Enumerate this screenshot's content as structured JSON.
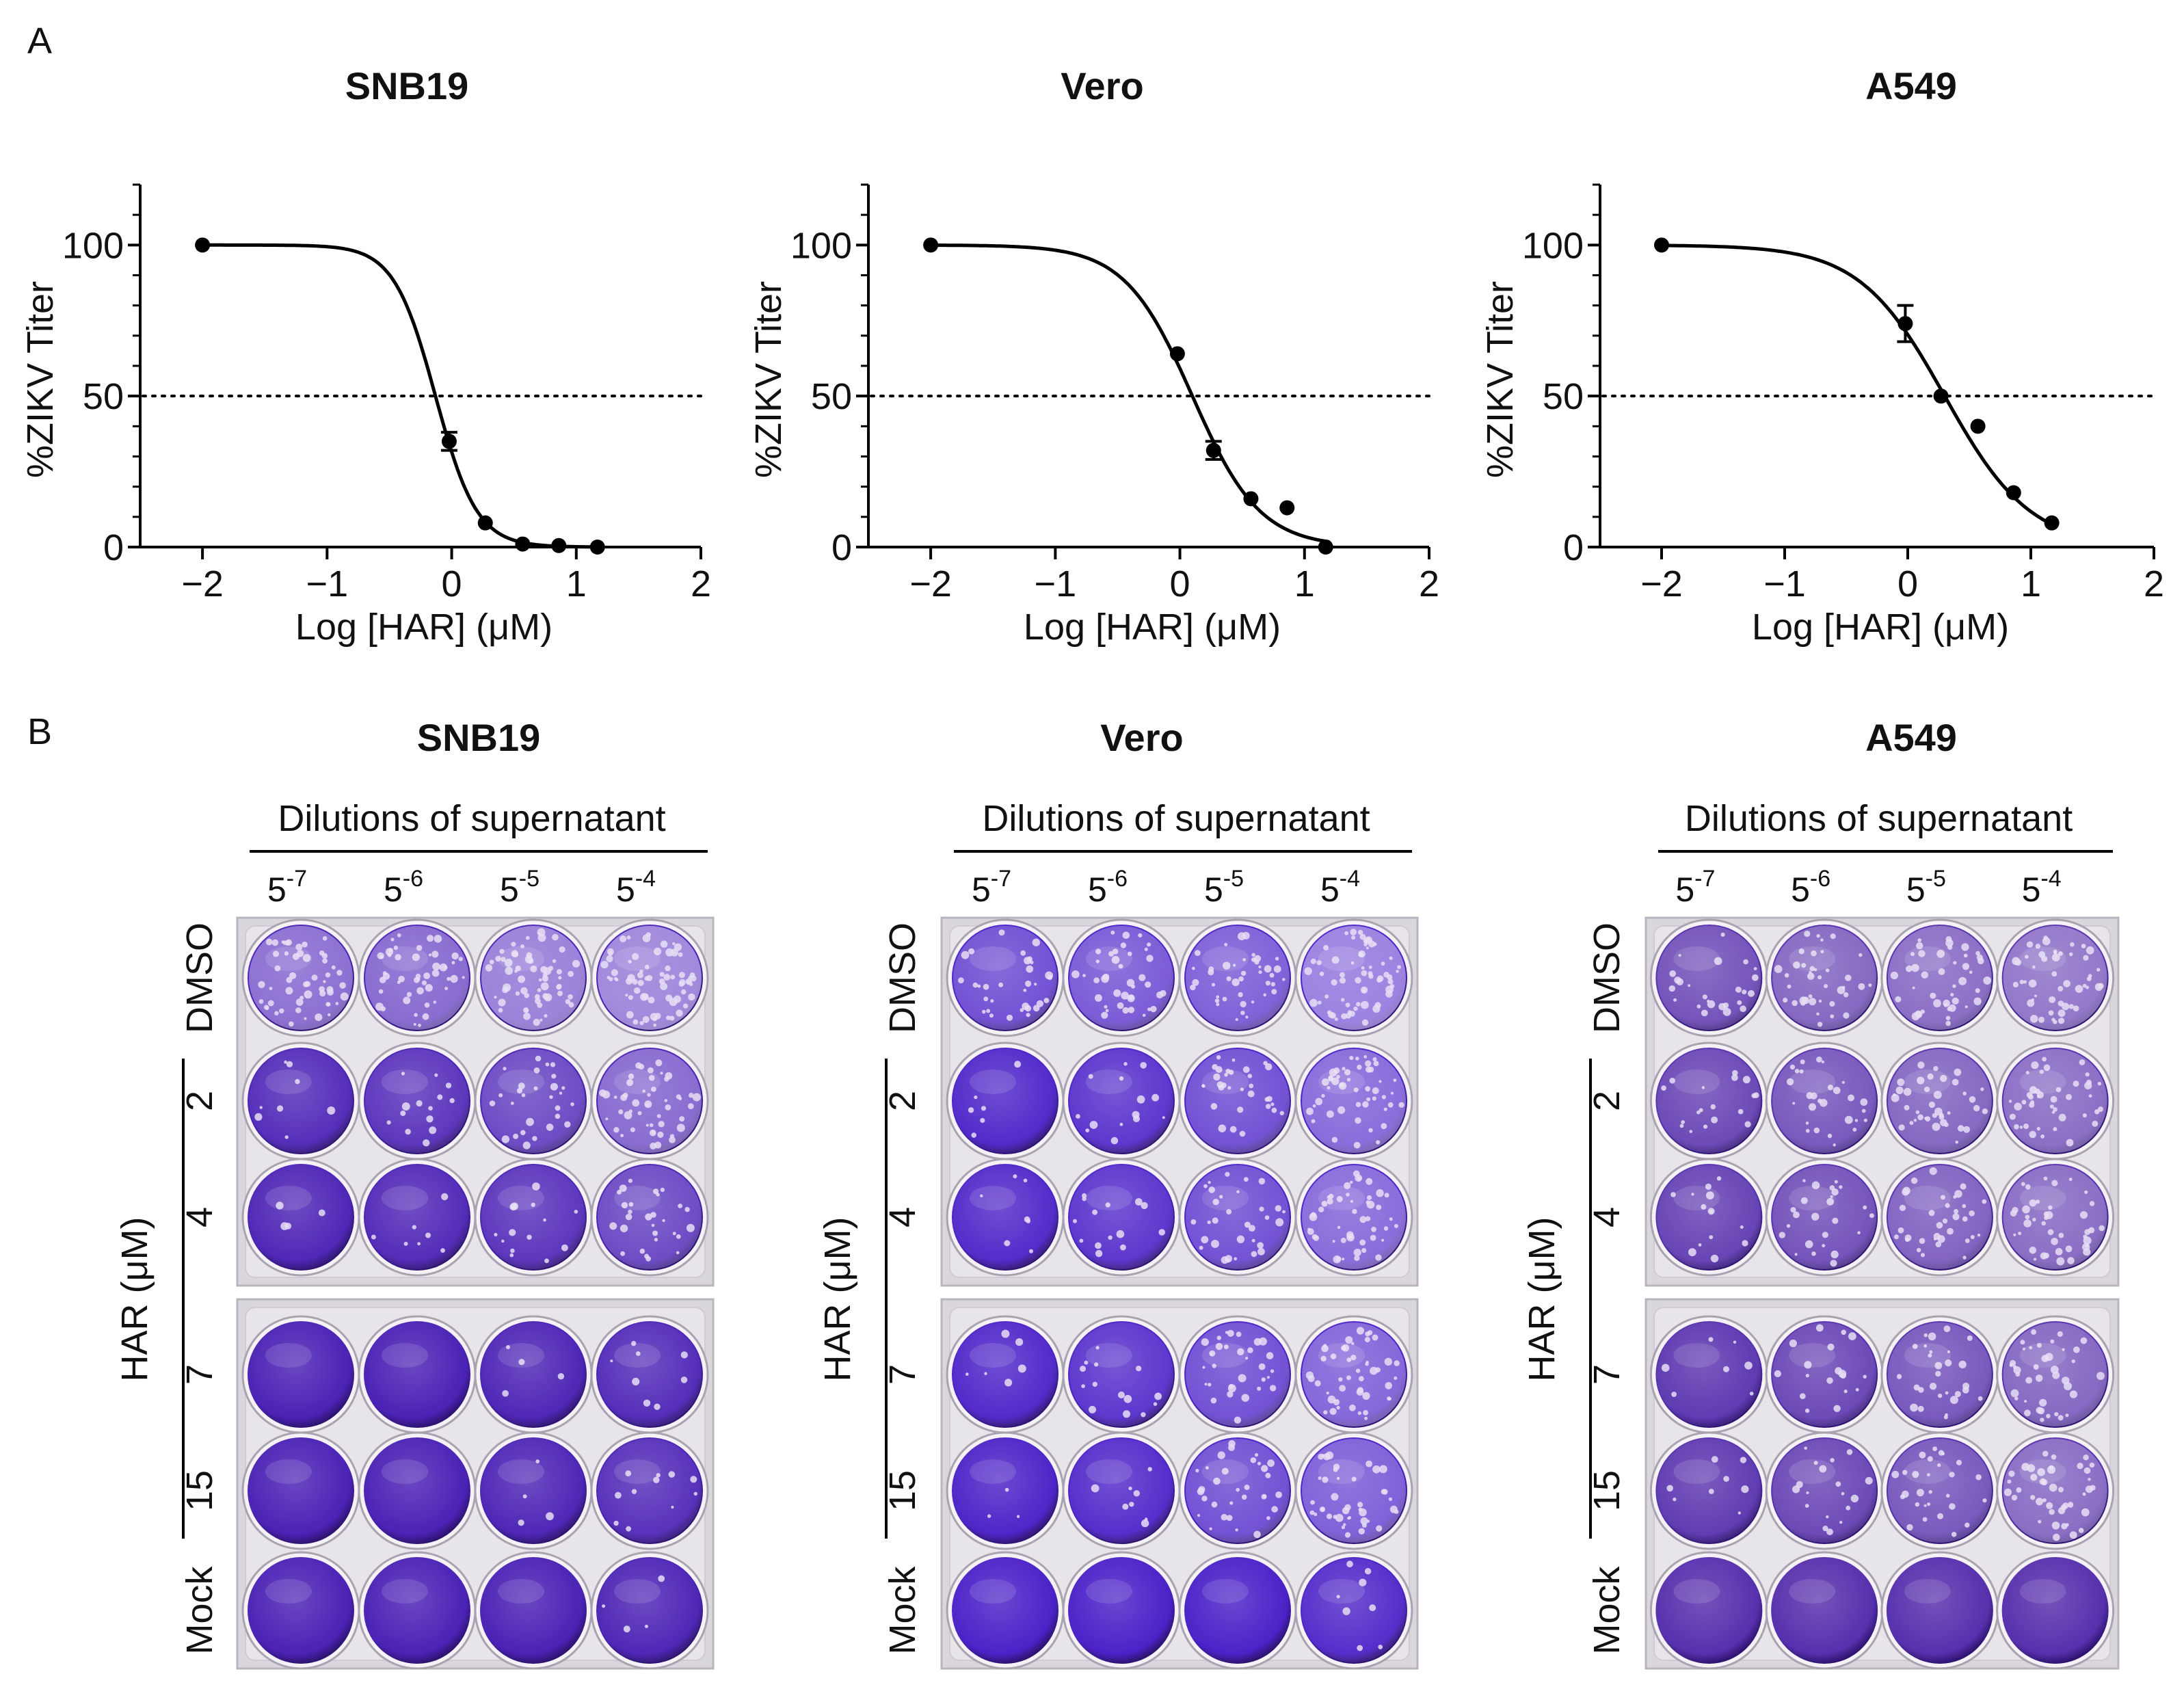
{
  "panel_labels": {
    "a": "A",
    "b": "B"
  },
  "chart_data": [
    {
      "type": "scatter",
      "title": "SNB19",
      "xlabel": "Log [HAR] (μM)",
      "ylabel": "%ZIKV Titer",
      "xlim": [
        -2.5,
        2
      ],
      "ylim": [
        0,
        120
      ],
      "xticks": [
        "−2",
        "−1",
        "0",
        "1",
        "2"
      ],
      "yticks": [
        "0",
        "50",
        "100"
      ],
      "reference_line_y": 50,
      "fit": {
        "top": 100,
        "bottom": 0,
        "log_ic50": -0.13,
        "hill": 2.6
      },
      "points": [
        {
          "x": -2.0,
          "y": 100
        },
        {
          "x": -0.02,
          "y": 35,
          "err": 3
        },
        {
          "x": 0.27,
          "y": 8
        },
        {
          "x": 0.57,
          "y": 1
        },
        {
          "x": 0.86,
          "y": 0.5
        },
        {
          "x": 1.17,
          "y": 0
        }
      ]
    },
    {
      "type": "scatter",
      "title": "Vero",
      "xlabel": "Log [HAR] (μM)",
      "ylabel": "%ZIKV Titer",
      "xlim": [
        -2.5,
        2
      ],
      "ylim": [
        0,
        120
      ],
      "xticks": [
        "−2",
        "−1",
        "0",
        "1",
        "2"
      ],
      "yticks": [
        "0",
        "50",
        "100"
      ],
      "reference_line_y": 50,
      "fit": {
        "top": 100,
        "bottom": 0,
        "log_ic50": 0.1,
        "hill": 1.6
      },
      "points": [
        {
          "x": -2.0,
          "y": 100
        },
        {
          "x": -0.02,
          "y": 64
        },
        {
          "x": 0.27,
          "y": 32,
          "err": 3
        },
        {
          "x": 0.57,
          "y": 16
        },
        {
          "x": 0.86,
          "y": 13
        },
        {
          "x": 1.17,
          "y": 0
        }
      ]
    },
    {
      "type": "scatter",
      "title": "A549",
      "xlabel": "Log [HAR] (μM)",
      "ylabel": "%ZIKV Titer",
      "xlim": [
        -2.5,
        2
      ],
      "ylim": [
        0,
        120
      ],
      "xticks": [
        "−2",
        "−1",
        "0",
        "1",
        "2"
      ],
      "yticks": [
        "0",
        "50",
        "100"
      ],
      "reference_line_y": 50,
      "fit": {
        "top": 100,
        "bottom": 0,
        "log_ic50": 0.3,
        "hill": 1.25
      },
      "points": [
        {
          "x": -2.0,
          "y": 100
        },
        {
          "x": -0.02,
          "y": 74,
          "err": 6
        },
        {
          "x": 0.27,
          "y": 50
        },
        {
          "x": 0.57,
          "y": 40
        },
        {
          "x": 0.86,
          "y": 18
        },
        {
          "x": 1.17,
          "y": 8
        }
      ]
    }
  ],
  "plates": {
    "dilutions_header": "Dilutions of supernatant",
    "dilution_base": "5",
    "dilution_exponents": [
      "-7",
      "-6",
      "-5",
      "-4"
    ],
    "row_labels": [
      "DMSO",
      "2",
      "4",
      "7",
      "15",
      "Mock"
    ],
    "har_label": "HAR (μM)",
    "panels": [
      {
        "title": "SNB19",
        "well_color": "#4b22b5",
        "well_light": "#b9a7e6",
        "plaque_level": [
          [
            0.75,
            0.7,
            0.92,
            0.98
          ],
          [
            0.12,
            0.2,
            0.4,
            0.7
          ],
          [
            0.05,
            0.1,
            0.2,
            0.4
          ],
          [
            0.0,
            0.0,
            0.05,
            0.12
          ],
          [
            0.0,
            0.0,
            0.05,
            0.15
          ],
          [
            0.0,
            0.0,
            0.0,
            0.05
          ]
        ]
      },
      {
        "title": "Vero",
        "well_color": "#4b22c8",
        "well_light": "#bba9ea",
        "plaque_level": [
          [
            0.45,
            0.55,
            0.6,
            0.9
          ],
          [
            0.08,
            0.2,
            0.45,
            0.7
          ],
          [
            0.1,
            0.2,
            0.45,
            0.7
          ],
          [
            0.08,
            0.2,
            0.45,
            0.65
          ],
          [
            0.04,
            0.12,
            0.45,
            0.6
          ],
          [
            0.0,
            0.0,
            0.0,
            0.12
          ]
        ]
      },
      {
        "title": "A549",
        "well_color": "#5730ad",
        "well_light": "#c2b3e0",
        "plaque_level": [
          [
            0.35,
            0.55,
            0.62,
            0.7
          ],
          [
            0.25,
            0.4,
            0.55,
            0.62
          ],
          [
            0.2,
            0.35,
            0.5,
            0.6
          ],
          [
            0.1,
            0.25,
            0.4,
            0.55
          ],
          [
            0.12,
            0.25,
            0.4,
            0.6
          ],
          [
            0.0,
            0.0,
            0.0,
            0.0
          ]
        ]
      }
    ]
  }
}
